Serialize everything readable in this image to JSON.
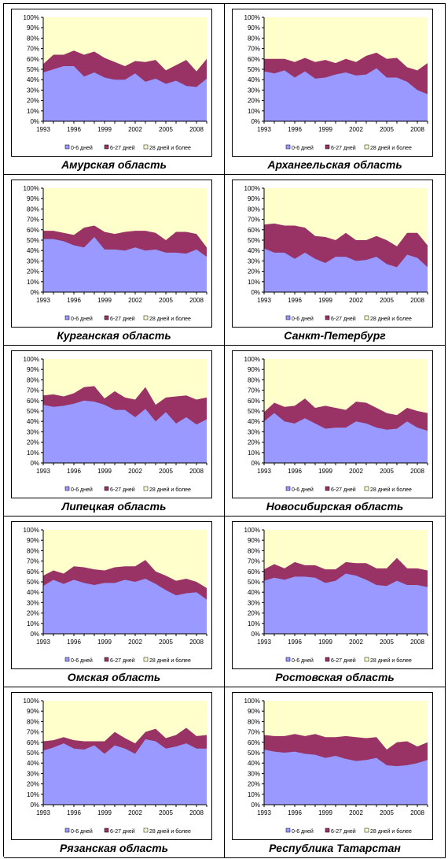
{
  "colors": {
    "s1": "#9999ff",
    "s2": "#993366",
    "s3": "#ffffcc",
    "axis": "#000000"
  },
  "chart_data": [
    {
      "type": "area",
      "title": "Амурская область",
      "x": [
        1993,
        1994,
        1995,
        1996,
        1997,
        1998,
        1999,
        2000,
        2001,
        2002,
        2003,
        2004,
        2005,
        2006,
        2007,
        2008,
        2009
      ],
      "series": [
        {
          "name": "0-6 дней",
          "values": [
            47,
            50,
            53,
            53,
            43,
            47,
            42,
            40,
            40,
            46,
            38,
            41,
            36,
            39,
            34,
            33,
            41
          ]
        },
        {
          "name": "6-27 дней",
          "values": [
            8,
            14,
            11,
            15,
            21,
            20,
            19,
            17,
            13,
            12,
            19,
            18,
            13,
            15,
            25,
            15,
            19
          ]
        },
        {
          "name": "28 дней и более",
          "values": [
            45,
            36,
            36,
            32,
            36,
            33,
            39,
            43,
            47,
            42,
            43,
            41,
            51,
            46,
            41,
            52,
            40
          ]
        }
      ]
    },
    {
      "type": "area",
      "title": "Архангельская область",
      "x": [
        1993,
        1994,
        1995,
        1996,
        1997,
        1998,
        1999,
        2000,
        2001,
        2002,
        2003,
        2004,
        2005,
        2006,
        2007,
        2008,
        2009
      ],
      "series": [
        {
          "name": "0-6 дней",
          "values": [
            48,
            46,
            49,
            42,
            48,
            41,
            42,
            45,
            47,
            44,
            45,
            51,
            42,
            42,
            38,
            30,
            26
          ]
        },
        {
          "name": "6-27 дней",
          "values": [
            12,
            14,
            11,
            15,
            13,
            16,
            17,
            11,
            13,
            13,
            18,
            15,
            18,
            19,
            14,
            19,
            30
          ]
        },
        {
          "name": "28 дней и более",
          "values": [
            40,
            40,
            40,
            43,
            39,
            43,
            41,
            44,
            40,
            43,
            37,
            34,
            40,
            39,
            48,
            51,
            44
          ]
        }
      ]
    },
    {
      "type": "area",
      "title": "Курганская область",
      "x": [
        1993,
        1994,
        1995,
        1996,
        1997,
        1998,
        1999,
        2000,
        2001,
        2002,
        2003,
        2004,
        2005,
        2006,
        2007,
        2008,
        2009
      ],
      "series": [
        {
          "name": "0-6 дней",
          "values": [
            51,
            51,
            49,
            45,
            43,
            53,
            41,
            41,
            40,
            43,
            40,
            41,
            38,
            38,
            37,
            41,
            34
          ]
        },
        {
          "name": "6-27 дней",
          "values": [
            8,
            8,
            8,
            10,
            19,
            11,
            17,
            15,
            18,
            16,
            19,
            16,
            12,
            20,
            21,
            15,
            9
          ]
        },
        {
          "name": "28 дней и более",
          "values": [
            41,
            41,
            43,
            45,
            38,
            36,
            42,
            44,
            42,
            41,
            41,
            43,
            50,
            42,
            42,
            44,
            57
          ]
        }
      ]
    },
    {
      "type": "area",
      "title": "Санкт-Петербург",
      "x": [
        1993,
        1994,
        1995,
        1996,
        1997,
        1998,
        1999,
        2000,
        2001,
        2002,
        2003,
        2004,
        2005,
        2006,
        2007,
        2008,
        2009
      ],
      "series": [
        {
          "name": "0-6 дней",
          "values": [
            42,
            38,
            38,
            32,
            38,
            32,
            28,
            34,
            34,
            30,
            31,
            34,
            27,
            24,
            36,
            33,
            24
          ]
        },
        {
          "name": "6-27 дней",
          "values": [
            23,
            28,
            26,
            32,
            24,
            22,
            25,
            16,
            23,
            20,
            19,
            20,
            23,
            20,
            21,
            24,
            21
          ]
        },
        {
          "name": "28 дней и более",
          "values": [
            35,
            34,
            36,
            36,
            38,
            46,
            47,
            50,
            43,
            50,
            50,
            46,
            50,
            56,
            43,
            43,
            55
          ]
        }
      ]
    },
    {
      "type": "area",
      "title": "Липецкая область",
      "x": [
        1993,
        1994,
        1995,
        1996,
        1997,
        1998,
        1999,
        2000,
        2001,
        2002,
        2003,
        2004,
        2005,
        2006,
        2007,
        2008,
        2009
      ],
      "series": [
        {
          "name": "0-6 дней",
          "values": [
            56,
            54,
            55,
            57,
            60,
            59,
            56,
            51,
            51,
            44,
            52,
            40,
            49,
            38,
            44,
            37,
            42
          ]
        },
        {
          "name": "6-27 дней",
          "values": [
            9,
            12,
            9,
            10,
            13,
            15,
            6,
            18,
            12,
            17,
            21,
            16,
            14,
            26,
            21,
            24,
            21
          ]
        },
        {
          "name": "28 дней и более",
          "values": [
            35,
            34,
            36,
            33,
            27,
            26,
            38,
            31,
            37,
            39,
            27,
            44,
            37,
            36,
            35,
            39,
            37
          ]
        }
      ]
    },
    {
      "type": "area",
      "title": "Новосибирская область",
      "x": [
        1993,
        1994,
        1995,
        1996,
        1997,
        1998,
        1999,
        2000,
        2001,
        2002,
        2003,
        2004,
        2005,
        2006,
        2007,
        2008,
        2009
      ],
      "series": [
        {
          "name": "0-6 дней",
          "values": [
            40,
            48,
            40,
            38,
            43,
            38,
            33,
            34,
            34,
            40,
            38,
            34,
            32,
            33,
            40,
            34,
            31
          ]
        },
        {
          "name": "6-27 дней",
          "values": [
            9,
            10,
            14,
            17,
            19,
            15,
            22,
            19,
            17,
            19,
            20,
            19,
            16,
            13,
            13,
            16,
            17
          ]
        },
        {
          "name": "28 дней и более",
          "values": [
            51,
            42,
            46,
            45,
            38,
            47,
            45,
            47,
            49,
            41,
            42,
            47,
            52,
            54,
            47,
            50,
            52
          ]
        }
      ]
    },
    {
      "type": "area",
      "title": "Омская область",
      "x": [
        1993,
        1994,
        1995,
        1996,
        1997,
        1998,
        1999,
        2000,
        2001,
        2002,
        2003,
        2004,
        2005,
        2006,
        2007,
        2008,
        2009
      ],
      "series": [
        {
          "name": "0-6 дней",
          "values": [
            46,
            52,
            48,
            52,
            49,
            47,
            49,
            49,
            52,
            50,
            53,
            48,
            42,
            37,
            39,
            40,
            33
          ]
        },
        {
          "name": "6-27 дней",
          "values": [
            10,
            9,
            10,
            13,
            15,
            15,
            12,
            15,
            13,
            15,
            18,
            12,
            14,
            14,
            14,
            10,
            11
          ]
        },
        {
          "name": "28 дней и более",
          "values": [
            44,
            39,
            42,
            35,
            36,
            38,
            39,
            36,
            35,
            35,
            29,
            40,
            44,
            49,
            47,
            50,
            56
          ]
        }
      ]
    },
    {
      "type": "area",
      "title": "Ростовская область",
      "x": [
        1993,
        1994,
        1995,
        1996,
        1997,
        1998,
        1999,
        2000,
        2001,
        2002,
        2003,
        2004,
        2005,
        2006,
        2007,
        2008,
        2009
      ],
      "series": [
        {
          "name": "0-6 дней",
          "values": [
            51,
            54,
            52,
            55,
            55,
            54,
            49,
            51,
            58,
            56,
            52,
            47,
            46,
            51,
            47,
            47,
            45
          ]
        },
        {
          "name": "6-27 дней",
          "values": [
            11,
            13,
            11,
            14,
            11,
            12,
            13,
            11,
            11,
            12,
            16,
            16,
            17,
            22,
            16,
            16,
            16
          ]
        },
        {
          "name": "28 дней и более",
          "values": [
            38,
            33,
            37,
            31,
            34,
            34,
            38,
            38,
            31,
            32,
            32,
            37,
            37,
            27,
            37,
            37,
            39
          ]
        }
      ]
    },
    {
      "type": "area",
      "title": "Рязанская область",
      "x": [
        1993,
        1994,
        1995,
        1996,
        1997,
        1998,
        1999,
        2000,
        2001,
        2002,
        2003,
        2004,
        2005,
        2006,
        2007,
        2008,
        2009
      ],
      "series": [
        {
          "name": "0-6 дней",
          "values": [
            52,
            55,
            59,
            54,
            53,
            57,
            49,
            57,
            54,
            49,
            63,
            61,
            54,
            56,
            59,
            54,
            54
          ]
        },
        {
          "name": "6-27 дней",
          "values": [
            9,
            7,
            6,
            8,
            8,
            4,
            12,
            13,
            10,
            10,
            7,
            12,
            10,
            11,
            15,
            12,
            13
          ]
        },
        {
          "name": "28 дней и более",
          "values": [
            39,
            38,
            35,
            38,
            39,
            39,
            39,
            30,
            36,
            41,
            30,
            27,
            36,
            33,
            26,
            34,
            33
          ]
        }
      ]
    },
    {
      "type": "area",
      "title": "Республика Татарстан",
      "x": [
        1993,
        1994,
        1995,
        1996,
        1997,
        1998,
        1999,
        2000,
        2001,
        2002,
        2003,
        2004,
        2005,
        2006,
        2007,
        2008,
        2009
      ],
      "series": [
        {
          "name": "0-6 дней",
          "values": [
            53,
            51,
            50,
            51,
            49,
            48,
            45,
            47,
            44,
            42,
            43,
            45,
            38,
            37,
            38,
            40,
            43
          ]
        },
        {
          "name": "6-27 дней",
          "values": [
            14,
            15,
            16,
            17,
            17,
            20,
            20,
            18,
            22,
            23,
            21,
            20,
            15,
            23,
            23,
            16,
            17
          ]
        },
        {
          "name": "28 дней и более",
          "values": [
            33,
            34,
            34,
            32,
            34,
            32,
            35,
            35,
            34,
            35,
            36,
            35,
            47,
            40,
            39,
            44,
            40
          ]
        }
      ]
    }
  ],
  "axis": {
    "y_ticks": [
      "0%",
      "10%",
      "20%",
      "30%",
      "40%",
      "50%",
      "60%",
      "70%",
      "80%",
      "90%",
      "100%"
    ],
    "x_ticks": [
      "1993",
      "1996",
      "1999",
      "2002",
      "2005",
      "2008"
    ]
  },
  "legend": [
    "0-6 дней",
    "6-27 дней",
    "28 дней и более"
  ]
}
